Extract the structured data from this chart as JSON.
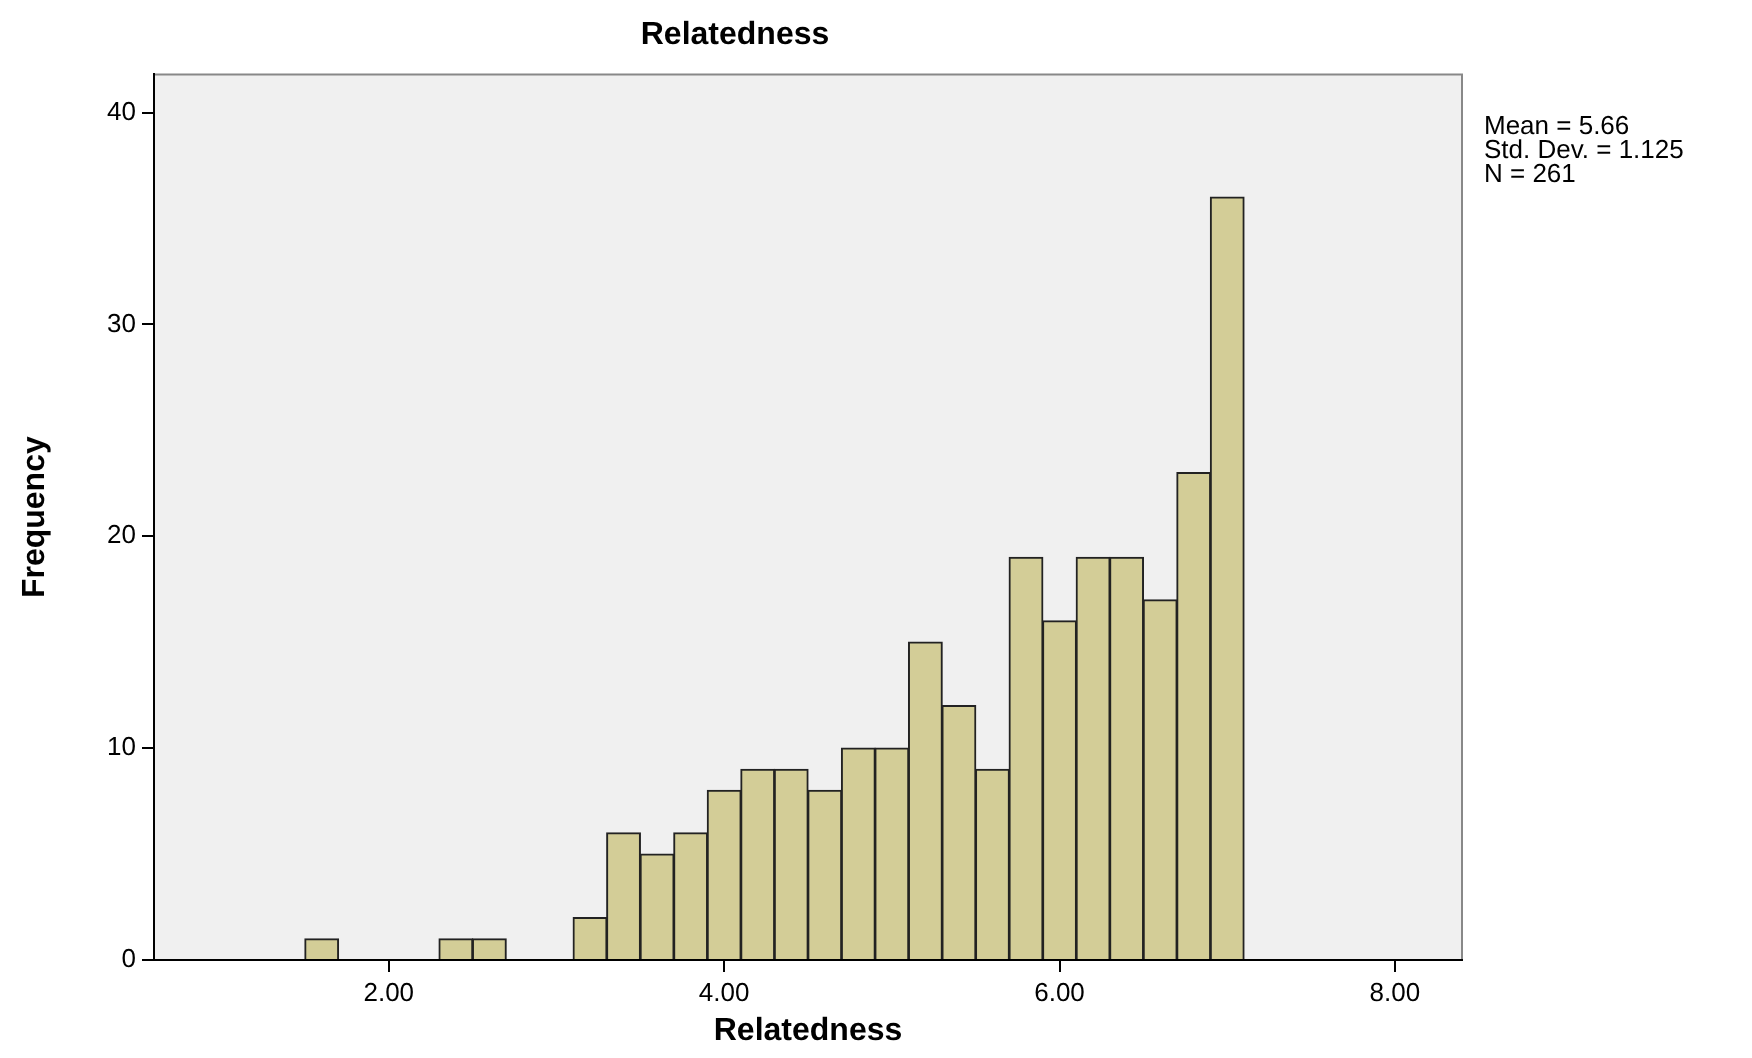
{
  "chart_data": {
    "type": "histogram",
    "title": "Relatedness",
    "xlabel": "Relatedness",
    "ylabel": "Frequency",
    "bins": [
      1.5,
      1.7,
      1.9,
      2.1,
      2.3,
      2.5,
      2.7,
      2.9,
      3.1,
      3.3,
      3.5,
      3.7,
      3.9,
      4.1,
      4.3,
      4.5,
      4.7,
      4.9,
      5.1,
      5.3,
      5.5,
      5.7,
      5.9,
      6.1,
      6.3,
      6.5,
      6.7,
      6.9,
      7.1
    ],
    "values": [
      1,
      0,
      0,
      0,
      1,
      1,
      0,
      0,
      2,
      6,
      5,
      6,
      8,
      9,
      9,
      8,
      10,
      10,
      15,
      12,
      9,
      19,
      16,
      19,
      19,
      17,
      23,
      36
    ],
    "color": "#d3cd97",
    "xlim": [
      0.6,
      8.4
    ],
    "xticks": [
      {
        "value": 2,
        "label": "2.00"
      },
      {
        "value": 4,
        "label": "4.00"
      },
      {
        "value": 6,
        "label": "6.00"
      },
      {
        "value": 8,
        "label": "8.00"
      }
    ],
    "ylim": [
      0,
      41.8
    ],
    "yticks": [
      0,
      10,
      20,
      30,
      40
    ],
    "grid": false,
    "legend": false,
    "annotations": [
      "Mean = 5.66",
      "Std. Dev. = 1.125",
      "N = 261"
    ]
  }
}
